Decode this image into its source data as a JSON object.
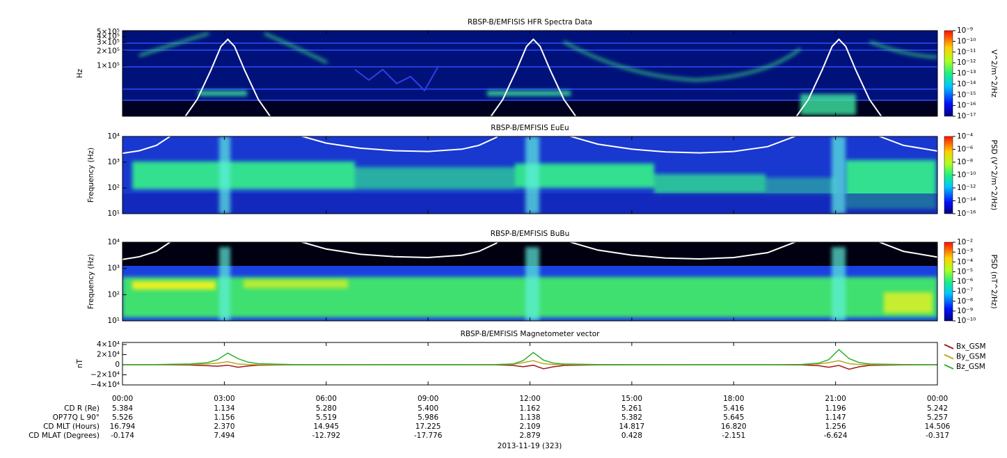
{
  "chart_data": [
    {
      "type": "spectrogram",
      "title": "RBSP-B/EMFISIS  HFR Spectra Data",
      "ylabel": "Hz",
      "log": true,
      "ylim": [
        9000,
        530000
      ],
      "yticks": [
        {
          "value": 500000,
          "label": "5×10⁵"
        },
        {
          "value": 400000,
          "label": "4×10⁵"
        },
        {
          "value": 300000,
          "label": "3×10⁵"
        },
        {
          "value": 200000,
          "label": "2×10⁵"
        },
        {
          "value": 100000,
          "label": "1×10⁵"
        }
      ],
      "colorbar_label": "V^2/m^2/Hz",
      "zlim": [
        1e-17,
        1e-09
      ],
      "zticks": [
        {
          "value": 1e-09,
          "label": "10⁻⁹"
        },
        {
          "value": 1e-10,
          "label": "10⁻¹⁰"
        },
        {
          "value": 1e-11,
          "label": "10⁻¹¹"
        },
        {
          "value": 1e-12,
          "label": "10⁻¹²"
        },
        {
          "value": 1e-13,
          "label": "10⁻¹³"
        },
        {
          "value": 1e-14,
          "label": "10⁻¹⁴"
        },
        {
          "value": 1e-15,
          "label": "10⁻¹⁵"
        },
        {
          "value": 1e-16,
          "label": "10⁻¹⁶"
        },
        {
          "value": 1e-17,
          "label": "10⁻¹⁷"
        }
      ],
      "line": {
        "color": "#ffffff",
        "x": [
          1.8,
          2.2,
          2.6,
          2.9,
          3.1,
          3.3,
          3.6,
          4,
          4.4,
          7,
          10.8,
          11.2,
          11.6,
          11.9,
          12.1,
          12.3,
          12.6,
          13,
          13.4,
          16.5,
          19.8,
          20.2,
          20.6,
          20.9,
          21.1,
          21.3,
          21.6,
          22,
          22.4
        ],
        "values": [
          8000,
          20000,
          80000,
          250000,
          350000,
          250000,
          80000,
          20000,
          8000,
          null,
          8000,
          20000,
          80000,
          250000,
          350000,
          250000,
          80000,
          20000,
          8000,
          null,
          8000,
          20000,
          80000,
          250000,
          350000,
          250000,
          80000,
          20000,
          8000
        ]
      }
    },
    {
      "type": "spectrogram",
      "title": "RBSP-B/EMFISIS  EuEu",
      "ylabel": "Frequency (Hz)",
      "log": true,
      "ylim": [
        10,
        10000
      ],
      "yticks": [
        {
          "value": 10000,
          "label": "10⁴"
        },
        {
          "value": 1000,
          "label": "10³"
        },
        {
          "value": 100,
          "label": "10²"
        },
        {
          "value": 10,
          "label": "10¹"
        }
      ],
      "colorbar_label": "PSD (V^2/m^2/Hz)",
      "zlim": [
        1e-16,
        0.0001
      ],
      "zticks": [
        {
          "value": 0.0001,
          "label": "10⁻⁴"
        },
        {
          "value": 1e-06,
          "label": "10⁻⁶"
        },
        {
          "value": 1e-08,
          "label": "10⁻⁸"
        },
        {
          "value": 1e-10,
          "label": "10⁻¹⁰"
        },
        {
          "value": 1e-12,
          "label": "10⁻¹²"
        },
        {
          "value": 1e-14,
          "label": "10⁻¹⁴"
        },
        {
          "value": 1e-16,
          "label": "10⁻¹⁶"
        }
      ],
      "line": {
        "color": "#ffffff",
        "x": [
          0,
          0.5,
          1,
          1.4,
          3,
          5.3,
          6,
          7,
          8,
          9,
          10,
          10.5,
          11,
          12,
          13.2,
          14,
          15,
          16,
          17,
          18,
          19,
          19.8,
          21,
          22.3,
          23,
          24
        ],
        "values": [
          2200,
          2800,
          4500,
          10000,
          100000,
          10000,
          5500,
          3500,
          2800,
          2600,
          3200,
          4500,
          9000,
          100000,
          10000,
          5000,
          3200,
          2500,
          2300,
          2600,
          4000,
          10000,
          100000,
          10000,
          4500,
          2700
        ]
      }
    },
    {
      "type": "spectrogram",
      "title": "RBSP-B/EMFISIS  BuBu",
      "ylabel": "Frequency (Hz)",
      "log": true,
      "ylim": [
        10,
        10000
      ],
      "yticks": [
        {
          "value": 10000,
          "label": "10⁴"
        },
        {
          "value": 1000,
          "label": "10³"
        },
        {
          "value": 100,
          "label": "10²"
        },
        {
          "value": 10,
          "label": "10¹"
        }
      ],
      "colorbar_label": "PSD (nT^2/Hz)",
      "zlim": [
        1e-10,
        0.01
      ],
      "zticks": [
        {
          "value": 0.01,
          "label": "10⁻²"
        },
        {
          "value": 0.001,
          "label": "10⁻³"
        },
        {
          "value": 0.0001,
          "label": "10⁻⁴"
        },
        {
          "value": 1e-05,
          "label": "10⁻⁵"
        },
        {
          "value": 1e-06,
          "label": "10⁻⁶"
        },
        {
          "value": 1e-07,
          "label": "10⁻⁷"
        },
        {
          "value": 1e-08,
          "label": "10⁻⁸"
        },
        {
          "value": 1e-09,
          "label": "10⁻⁹"
        },
        {
          "value": 1e-10,
          "label": "10⁻¹⁰"
        }
      ],
      "line": {
        "color": "#ffffff",
        "x": [
          0,
          0.5,
          1,
          1.4,
          3,
          5.3,
          6,
          7,
          8,
          9,
          10,
          10.5,
          11,
          12,
          13.2,
          14,
          15,
          16,
          17,
          18,
          19,
          19.8,
          21,
          22.3,
          23,
          24
        ],
        "values": [
          2200,
          2800,
          4500,
          10000,
          100000,
          10000,
          5500,
          3500,
          2800,
          2600,
          3200,
          4500,
          9000,
          100000,
          10000,
          5000,
          3200,
          2500,
          2300,
          2600,
          4000,
          10000,
          100000,
          10000,
          4500,
          2700
        ]
      }
    },
    {
      "type": "line",
      "title": "RBSP-B/EMFISIS  Magnetometer vector",
      "ylabel": "nT",
      "ylim": [
        -40000,
        44000
      ],
      "yticks": [
        {
          "value": 40000,
          "label": "4×10⁴"
        },
        {
          "value": 20000,
          "label": "2×10⁴"
        },
        0,
        {
          "value": -20000,
          "label": "−2×10⁴"
        },
        {
          "value": -40000,
          "label": "−4×10⁴"
        }
      ],
      "x": [
        0,
        1,
        2,
        2.5,
        2.8,
        3.1,
        3.4,
        3.7,
        4,
        5,
        8,
        10,
        11,
        11.5,
        11.8,
        12.1,
        12.4,
        12.7,
        13,
        14,
        17,
        19,
        20,
        20.5,
        20.8,
        21.1,
        21.4,
        21.7,
        22,
        23,
        24
      ],
      "series": [
        {
          "name": "Bx_GSM",
          "color": "#a01818",
          "values": [
            0,
            -100,
            -800,
            -2000,
            -3000,
            -1000,
            -5000,
            -2500,
            -1000,
            -200,
            0,
            0,
            -200,
            -1500,
            -4000,
            -1000,
            -8000,
            -4000,
            -1500,
            -300,
            0,
            0,
            -300,
            -2000,
            -5000,
            -1500,
            -9000,
            -4000,
            -1500,
            -300,
            0
          ]
        },
        {
          "name": "By_GSM",
          "color": "#b8a820",
          "values": [
            0,
            50,
            500,
            1500,
            3000,
            6000,
            1500,
            200,
            0,
            0,
            0,
            0,
            100,
            800,
            4000,
            8000,
            2000,
            500,
            200,
            0,
            0,
            0,
            200,
            1500,
            4000,
            8000,
            2000,
            300,
            100,
            0,
            0
          ]
        },
        {
          "name": "Bz_GSM",
          "color": "#30b030",
          "values": [
            0,
            200,
            1500,
            4000,
            10000,
            23000,
            12000,
            5000,
            2000,
            400,
            0,
            0,
            300,
            1500,
            8000,
            24000,
            9000,
            3000,
            1500,
            300,
            0,
            0,
            500,
            3000,
            10000,
            30000,
            12000,
            4000,
            1500,
            300,
            0
          ]
        }
      ]
    }
  ],
  "x_axis": {
    "xlim": [
      0,
      24
    ],
    "xticks": [
      {
        "value": 0,
        "label": "00:00"
      },
      {
        "value": 3,
        "label": "03:00"
      },
      {
        "value": 6,
        "label": "06:00"
      },
      {
        "value": 9,
        "label": "09:00"
      },
      {
        "value": 12,
        "label": "12:00"
      },
      {
        "value": 15,
        "label": "15:00"
      },
      {
        "value": 18,
        "label": "18:00"
      },
      {
        "value": 21,
        "label": "21:00"
      },
      {
        "value": 24,
        "label": "00:00"
      }
    ],
    "date": "2013-11-19 (323)"
  },
  "ephemeris": [
    {
      "label": "CD R (Re)",
      "values": [
        "5.384",
        "1.134",
        "5.280",
        "5.400",
        "1.162",
        "5.261",
        "5.416",
        "1.196",
        "5.242"
      ]
    },
    {
      "label": "OP77Q L 90°",
      "values": [
        "5.526",
        "1.156",
        "5.519",
        "5.986",
        "1.138",
        "5.382",
        "5.645",
        "1.147",
        "5.257"
      ]
    },
    {
      "label": "CD MLT (Hours)",
      "values": [
        "16.794",
        "2.370",
        "14.945",
        "17.225",
        "2.109",
        "14.817",
        "16.820",
        "1.256",
        "14.506"
      ]
    },
    {
      "label": "CD MLAT (Degrees)",
      "values": [
        "-0.174",
        "7.494",
        "-12.792",
        "-17.776",
        "2.879",
        "0.428",
        "-2.151",
        "-6.624",
        "-0.317"
      ]
    }
  ]
}
